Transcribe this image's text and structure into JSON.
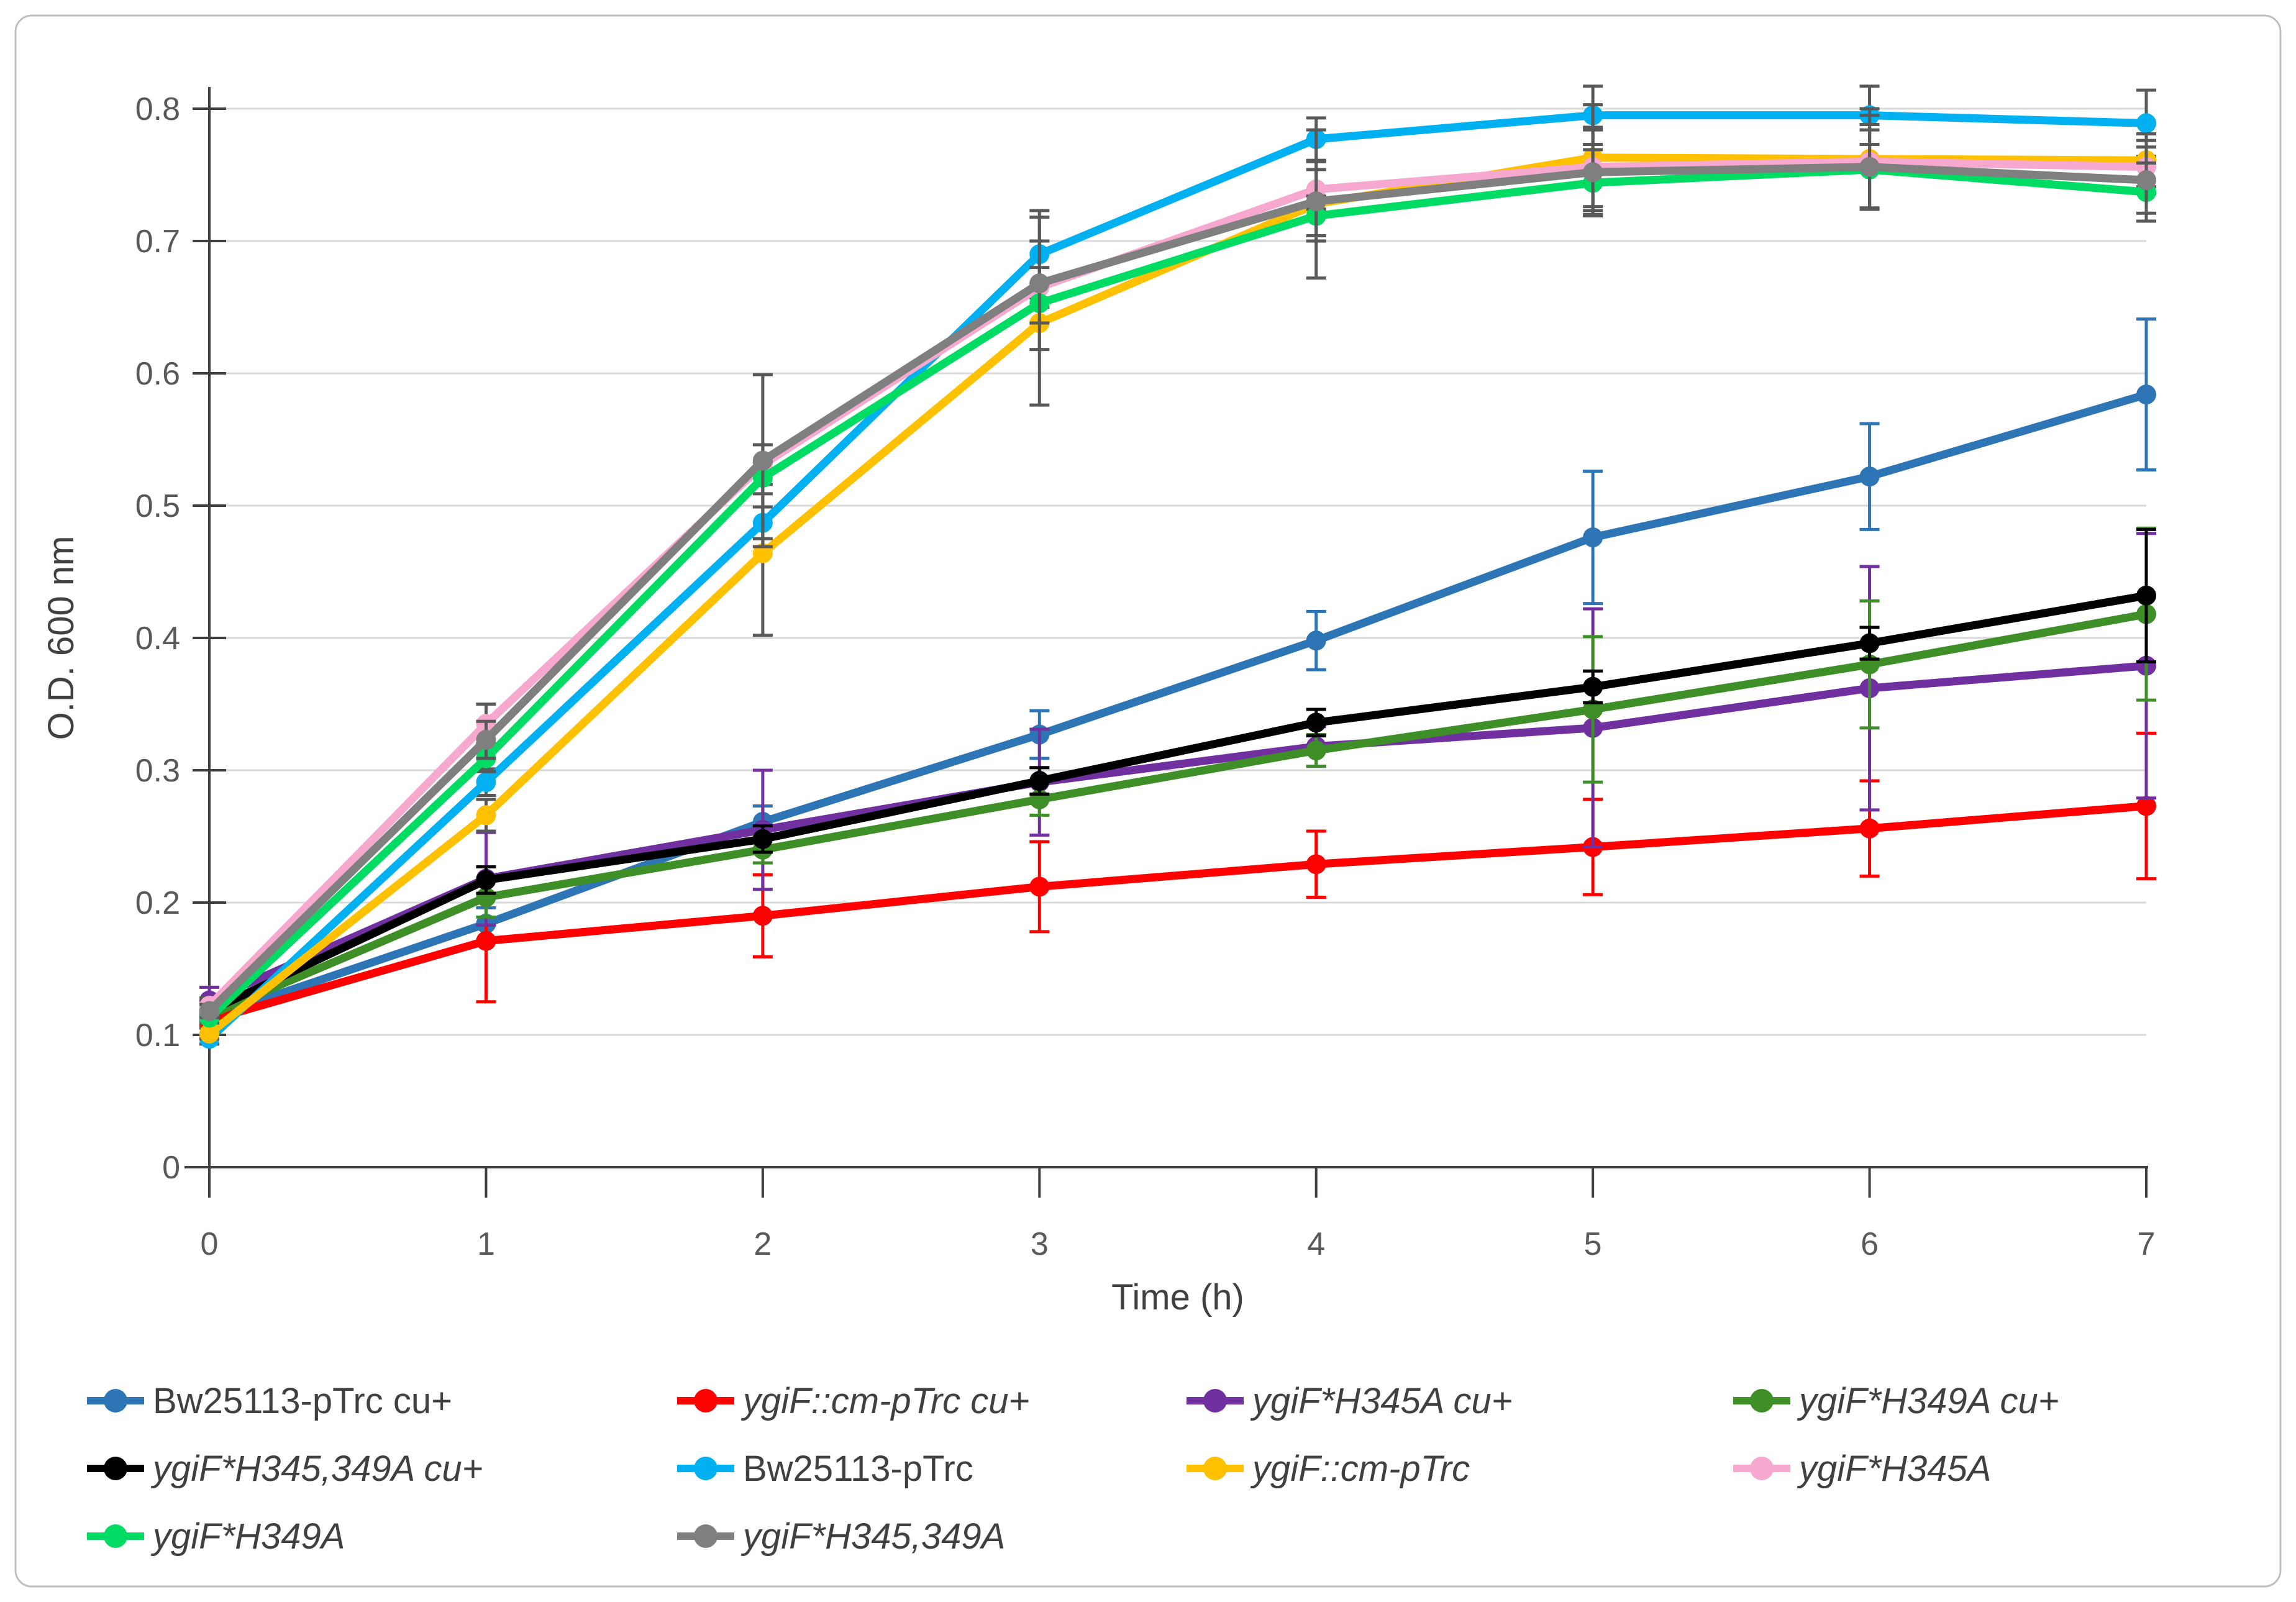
{
  "figure": {
    "background": "#FFFFFF",
    "border_color": "#BFBFBF",
    "grid_color": "#D9D9D9",
    "axis_color": "#3F3F3F",
    "tick_label_color": "#595959",
    "axis_title_color": "#404040",
    "legend_text_color": "#404040"
  },
  "chart_data": {
    "type": "line",
    "title": "",
    "xlabel": "Time (h)",
    "ylabel": "O.D. 600 nm",
    "x": [
      0,
      1,
      2,
      3,
      4,
      5,
      6,
      7
    ],
    "xtick_labels": [
      "0",
      "1",
      "2",
      "3",
      "4",
      "5",
      "6",
      "7"
    ],
    "ytick_labels": [
      "0",
      "0.1",
      "0.2",
      "0.3",
      "0.4",
      "0.5",
      "0.6",
      "0.7",
      "0.8"
    ],
    "xlim": [
      0,
      7
    ],
    "ylim": [
      0,
      0.8
    ],
    "ytick_step": 0.1,
    "grid": "horizontal",
    "legend_position": "bottom",
    "legend_columns": 4,
    "series": [
      {
        "name": "Bw25113-pTrc cu+",
        "color": "#2E75B6",
        "error_color": "#2E75B6",
        "italic": false,
        "values": [
          0.113,
          0.184,
          0.261,
          0.327,
          0.398,
          0.476,
          0.522,
          0.584
        ],
        "errors": [
          0.005,
          0.012,
          0.012,
          0.018,
          0.022,
          0.05,
          0.04,
          0.057
        ]
      },
      {
        "name": "ygiF::cm-pTrc cu+",
        "color": "#FF0000",
        "error_color": "#FF0000",
        "italic": true,
        "values": [
          0.111,
          0.171,
          0.19,
          0.212,
          0.229,
          0.242,
          0.256,
          0.273
        ],
        "errors": [
          0.004,
          0.046,
          0.031,
          0.034,
          0.025,
          0.036,
          0.036,
          0.055
        ]
      },
      {
        "name": "ygiF*H345A cu+",
        "color": "#7030A0",
        "error_color": "#7030A0",
        "italic": true,
        "values": [
          0.126,
          0.218,
          0.255,
          0.291,
          0.318,
          0.332,
          0.362,
          0.379
        ],
        "errors": [
          0.01,
          0.035,
          0.045,
          0.04,
          0.015,
          0.09,
          0.092,
          0.1
        ]
      },
      {
        "name": "ygiF*H349A cu+",
        "color": "#3F8F29",
        "error_color": "#3F8F29",
        "italic": true,
        "values": [
          0.115,
          0.204,
          0.24,
          0.278,
          0.315,
          0.346,
          0.38,
          0.418
        ],
        "errors": [
          0.004,
          0.015,
          0.01,
          0.012,
          0.012,
          0.055,
          0.048,
          0.065
        ]
      },
      {
        "name": "ygiF*H345,349A cu+",
        "color": "#000000",
        "error_color": "#000000",
        "italic": true,
        "values": [
          0.118,
          0.217,
          0.248,
          0.292,
          0.336,
          0.363,
          0.396,
          0.432
        ],
        "errors": [
          0.004,
          0.01,
          0.01,
          0.01,
          0.01,
          0.012,
          0.012,
          0.05
        ]
      },
      {
        "name": "Bw25113-pTrc",
        "color": "#00B0F0",
        "error_color": "#595959",
        "italic": false,
        "values": [
          0.097,
          0.291,
          0.487,
          0.69,
          0.777,
          0.795,
          0.795,
          0.789
        ],
        "errors": [
          0.004,
          0.01,
          0.012,
          0.033,
          0.016,
          0.022,
          0.022,
          0.025
        ]
      },
      {
        "name": "ygiF::cm-pTrc",
        "color": "#FFC000",
        "error_color": "#595959",
        "italic": true,
        "values": [
          0.101,
          0.266,
          0.464,
          0.638,
          0.728,
          0.763,
          0.762,
          0.761
        ],
        "errors": [
          0.004,
          0.012,
          0.062,
          0.062,
          0.056,
          0.04,
          0.038,
          0.02
        ]
      },
      {
        "name": "ygiF*H345A",
        "color": "#F7A8CF",
        "error_color": "#595959",
        "italic": true,
        "values": [
          0.122,
          0.335,
          0.531,
          0.665,
          0.739,
          0.756,
          0.76,
          0.756
        ],
        "errors": [
          0.006,
          0.015,
          0.015,
          0.015,
          0.015,
          0.03,
          0.035,
          0.02
        ]
      },
      {
        "name": "ygiF*H349A",
        "color": "#00DB63",
        "error_color": "#595959",
        "italic": true,
        "values": [
          0.113,
          0.309,
          0.521,
          0.653,
          0.719,
          0.744,
          0.754,
          0.737
        ],
        "errors": [
          0.004,
          0.01,
          0.012,
          0.015,
          0.015,
          0.025,
          0.03,
          0.022
        ]
      },
      {
        "name": "ygiF*H345,349A",
        "color": "#7F7F7F",
        "error_color": "#595959",
        "italic": true,
        "values": [
          0.118,
          0.323,
          0.534,
          0.668,
          0.73,
          0.752,
          0.756,
          0.746
        ],
        "errors": [
          0.005,
          0.014,
          0.065,
          0.05,
          0.03,
          0.032,
          0.032,
          0.025
        ]
      }
    ]
  }
}
